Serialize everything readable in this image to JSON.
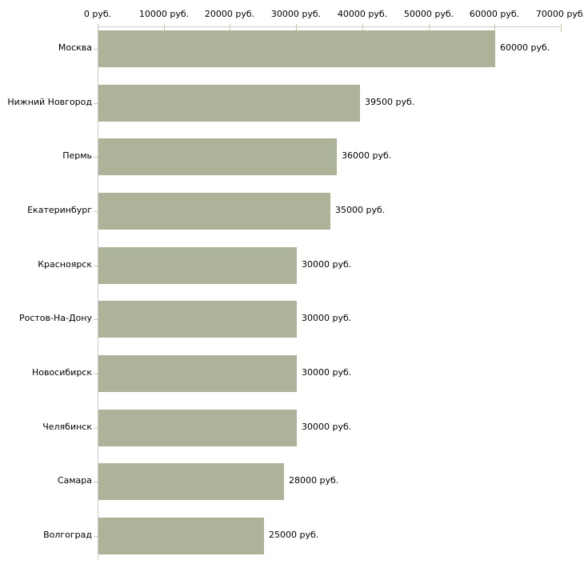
{
  "chart_data": {
    "type": "bar",
    "orientation": "horizontal",
    "title": "",
    "categories": [
      "Москва",
      "Нижний Новгород",
      "Пермь",
      "Екатеринбург",
      "Красноярск",
      "Ростов-На-Дону",
      "Новосибирск",
      "Челябинск",
      "Самара",
      "Волгоград"
    ],
    "values": [
      60000,
      39500,
      36000,
      35000,
      30000,
      30000,
      30000,
      30000,
      28000,
      25000
    ],
    "value_labels": [
      "60000 руб.",
      "39500 руб.",
      "36000 руб.",
      "35000 руб.",
      "30000 руб.",
      "30000 руб.",
      "30000 руб.",
      "30000 руб.",
      "28000 руб.",
      "25000 руб."
    ],
    "x_axis": {
      "position": "top",
      "min": 0,
      "max": 70000,
      "tick_interval": 10000,
      "tick_labels": [
        "0 руб.",
        "10000 руб.",
        "20000 руб.",
        "30000 руб.",
        "40000 руб.",
        "50000 руб.",
        "60000 руб.",
        "70000 руб."
      ]
    },
    "grid": false,
    "legend": false,
    "colors": {
      "bar": "#adb399",
      "axis_line": "#cbcbcb",
      "tick": "#c9c9a5",
      "text": "#000000",
      "background": "#ffffff"
    }
  }
}
